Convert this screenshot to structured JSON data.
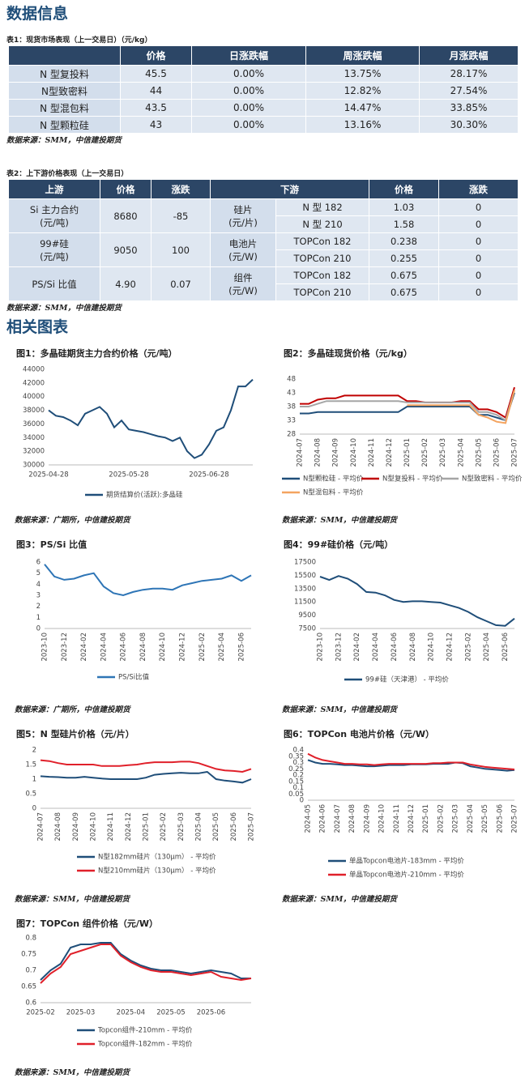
{
  "header": {
    "title": "数据信息"
  },
  "table1": {
    "caption": "表1：现货市场表现（上一交易日）（元/kg）",
    "columns": [
      "价格",
      "日涨跌幅",
      "周涨跌幅",
      "月涨跌幅"
    ],
    "rows": [
      [
        "N 型复投料",
        "45.5",
        "0.00%",
        "13.75%",
        "28.17%"
      ],
      [
        "N型致密料",
        "44",
        "0.00%",
        "12.82%",
        "27.54%"
      ],
      [
        "N 型混包料",
        "43.5",
        "0.00%",
        "14.47%",
        "33.85%"
      ],
      [
        "N 型颗粒硅",
        "43",
        "0.00%",
        "13.16%",
        "30.30%"
      ]
    ]
  },
  "source1": "数据来源：SMM，中信建投期货",
  "table2": {
    "caption": "表2：上下游价格表现（上一交易日）",
    "columns": [
      "上游",
      "价格",
      "涨跌",
      "下游",
      "价格",
      "涨跌"
    ],
    "upstream": [
      {
        "name": "Si 主力合约",
        "unit": "(元/吨)",
        "price": "8680",
        "change": "-85"
      },
      {
        "name": "99#硅",
        "unit": "(元/吨)",
        "price": "9050",
        "change": "100"
      },
      {
        "name": "PS/Si 比值",
        "price": "4.90",
        "change": "0.07"
      }
    ],
    "downstream": [
      {
        "name": "硅片",
        "unit": "(元/片)",
        "items": [
          {
            "spec": "N 型 182",
            "price": "1.03",
            "change": "0"
          },
          {
            "spec": "N 型 210",
            "price": "1.58",
            "change": "0"
          }
        ]
      },
      {
        "name": "电池片",
        "unit": "(元/W)",
        "items": [
          {
            "spec": "TOPCon 182",
            "price": "0.238",
            "change": "0"
          },
          {
            "spec": "TOPCon 210",
            "price": "0.255",
            "change": "0"
          }
        ]
      },
      {
        "name": "组件",
        "unit": "(元/W)",
        "items": [
          {
            "spec": "TOPCon 182",
            "price": "0.675",
            "change": "0"
          },
          {
            "spec": "TOPCon 210",
            "price": "0.675",
            "change": "0"
          }
        ]
      }
    ]
  },
  "source2": "数据来源：SMM，中信建投期货",
  "section_title": "相关图表",
  "chart_data": [
    {
      "type": "line",
      "title": "图1：多晶硅期货主力合约价格（元/吨）",
      "source": "数据来源：广期所，中信建投期货",
      "grid": false,
      "categories": [
        "2025-04-28",
        null,
        null,
        null,
        null,
        null,
        null,
        null,
        null,
        null,
        null,
        "2025-05-28",
        null,
        null,
        null,
        null,
        null,
        null,
        null,
        null,
        null,
        null,
        "2025-06-28",
        null,
        null,
        null,
        null,
        null,
        null
      ],
      "series": [
        {
          "name": "期货结算价(活跃):多晶硅",
          "color": "#1f4e79",
          "values": [
            38000,
            37200,
            37000,
            36500,
            35800,
            37500,
            38000,
            38500,
            37500,
            35500,
            36500,
            35200,
            35000,
            34800,
            34500,
            34200,
            34000,
            33500,
            34000,
            32000,
            31000,
            31500,
            33000,
            35000,
            35500,
            38000,
            41500,
            41500,
            42500
          ]
        }
      ],
      "ylim": [
        30000,
        44000
      ],
      "yticks": [
        30000,
        32000,
        34000,
        36000,
        38000,
        40000,
        42000,
        44000
      ]
    },
    {
      "type": "line",
      "title": "图2：多晶硅现货价格（元/kg）",
      "source": "数据来源：SMM，中信建投期货",
      "grid": false,
      "categories": [
        "2024-07",
        null,
        "2024-08",
        null,
        "2024-09",
        null,
        "2024-10",
        null,
        "2024-11",
        null,
        "2024-12",
        null,
        "2025-01",
        null,
        "2025-02",
        null,
        "2025-03",
        null,
        "2025-04",
        null,
        "2025-05",
        null,
        "2025-06",
        null,
        "2025-07"
      ],
      "series": [
        {
          "name": "N型颗粒硅 - 平均价",
          "color": "#1f4e79",
          "values": [
            35.5,
            35.5,
            36,
            36,
            36,
            36,
            36,
            36,
            36,
            36,
            36,
            36,
            38,
            38,
            38,
            38,
            38,
            38,
            38,
            38,
            35,
            35,
            34,
            33,
            43
          ]
        },
        {
          "name": "N型复投料 - 平均价",
          "color": "#c00000",
          "values": [
            39,
            39,
            40.5,
            41,
            41,
            42,
            42,
            42,
            42,
            42,
            42,
            42,
            40,
            40,
            39.5,
            39.5,
            39.5,
            39.5,
            40,
            40,
            37,
            37,
            36,
            34,
            45
          ]
        },
        {
          "name": "N型致密料 - 平均价",
          "color": "#a5a5a5",
          "values": [
            38,
            38,
            39,
            40,
            40,
            40,
            40,
            40,
            40,
            40,
            40,
            40,
            39.5,
            39.5,
            39.5,
            39.5,
            39.5,
            39.5,
            39.5,
            39.5,
            36,
            36,
            35,
            33,
            44
          ]
        },
        {
          "name": "N型混包料 - 平均价",
          "color": "#f4a460",
          "values": [
            null,
            null,
            null,
            null,
            null,
            null,
            null,
            null,
            null,
            null,
            null,
            null,
            38.5,
            38.5,
            38.5,
            38.5,
            38.5,
            38.5,
            38.5,
            38.5,
            35,
            34,
            32.5,
            32,
            44
          ]
        }
      ],
      "ylim": [
        28,
        48
      ],
      "yticks": [
        28,
        33,
        38,
        43,
        48
      ]
    },
    {
      "type": "line",
      "title": "图3：PS/Si 比值",
      "source": "数据来源：广期所，中信建投期货",
      "grid": false,
      "categories": [
        "2023-10",
        null,
        "2023-12",
        null,
        "2024-02",
        null,
        "2024-04",
        null,
        "2024-06",
        null,
        "2024-08",
        null,
        "2024-10",
        null,
        "2024-12",
        null,
        "2025-02",
        null,
        "2025-04",
        null,
        "2025-06",
        null
      ],
      "series": [
        {
          "name": "PS/Si比值",
          "color": "#2e75b6",
          "values": [
            5.8,
            4.7,
            4.4,
            4.5,
            4.8,
            5.0,
            3.8,
            3.2,
            3.0,
            3.3,
            3.5,
            3.6,
            3.6,
            3.5,
            3.9,
            4.1,
            4.3,
            4.4,
            4.5,
            4.8,
            4.3,
            4.8
          ]
        }
      ],
      "ylim": [
        0,
        6
      ],
      "yticks": [
        0,
        1,
        2,
        3,
        4,
        5,
        6
      ]
    },
    {
      "type": "line",
      "title": "图4：99#硅价格（元/吨）",
      "source": "数据来源：SMM，中信建投期货",
      "grid": false,
      "categories": [
        "2023-10",
        null,
        "2023-12",
        null,
        "2024-02",
        null,
        "2024-04",
        null,
        "2024-06",
        null,
        "2024-08",
        null,
        "2024-10",
        null,
        "2024-12",
        null,
        "2025-02",
        null,
        "2025-04",
        null,
        "2025-06",
        null
      ],
      "series": [
        {
          "name": "99#硅（天津港） - 平均价",
          "color": "#1f4e79",
          "values": [
            15300,
            14800,
            15400,
            15000,
            14200,
            13000,
            12900,
            12500,
            11800,
            11500,
            11600,
            11600,
            11500,
            11400,
            11000,
            10600,
            10000,
            9200,
            8600,
            8000,
            7900,
            9000
          ]
        }
      ],
      "ylim": [
        7500,
        17500
      ],
      "yticks": [
        7500,
        9500,
        11500,
        13500,
        15500,
        17500
      ]
    },
    {
      "type": "line",
      "title": "图5：N 型硅片价格（元/片）",
      "source": "数据来源：SMM，中信建投期货",
      "grid": false,
      "categories": [
        "2024-07",
        null,
        "2024-08",
        null,
        "2024-09",
        null,
        "2024-10",
        null,
        "2024-11",
        null,
        "2024-12",
        null,
        "2025-01",
        null,
        "2025-02",
        null,
        "2025-03",
        null,
        "2025-04",
        null,
        "2025-05",
        null,
        "2025-06",
        null,
        "2025-07"
      ],
      "series": [
        {
          "name": "N型182mm硅片（130μm） - 平均价",
          "color": "#1f4e79",
          "values": [
            1.1,
            1.08,
            1.07,
            1.05,
            1.05,
            1.08,
            1.05,
            1.02,
            1.0,
            1.0,
            1.0,
            1.0,
            1.05,
            1.15,
            1.18,
            1.2,
            1.22,
            1.2,
            1.2,
            1.25,
            1.0,
            0.95,
            0.92,
            0.88,
            1.0
          ]
        },
        {
          "name": "N型210mm硅片（130μm） - 平均价",
          "color": "#e0202a",
          "values": [
            1.65,
            1.62,
            1.55,
            1.5,
            1.5,
            1.5,
            1.5,
            1.45,
            1.45,
            1.45,
            1.48,
            1.5,
            1.55,
            1.58,
            1.58,
            1.58,
            1.6,
            1.6,
            1.55,
            1.45,
            1.35,
            1.3,
            1.28,
            1.25,
            1.35
          ]
        }
      ],
      "ylim": [
        0,
        2
      ],
      "yticks": [
        0,
        0.5,
        1,
        1.5,
        2
      ]
    },
    {
      "type": "line",
      "title": "图6：TOPCon 电池片价格（元/W）",
      "source": "数据来源：SMM，中信建投期货",
      "grid": false,
      "categories": [
        "2024-05",
        null,
        "2024-06",
        null,
        "2024-07",
        null,
        "2024-08",
        null,
        "2024-09",
        null,
        "2024-10",
        null,
        "2024-11",
        null,
        "2024-12",
        null,
        "2025-01",
        null,
        "2025-02",
        null,
        "2025-03",
        null,
        "2025-04",
        null,
        "2025-05",
        null,
        "2025-06",
        null,
        "2025-07"
      ],
      "series": [
        {
          "name": "单晶Topcon电池片-183mm - 平均价",
          "color": "#1f4e79",
          "values": [
            0.32,
            0.3,
            0.29,
            0.29,
            0.285,
            0.28,
            0.28,
            0.275,
            0.27,
            0.27,
            0.275,
            0.28,
            0.28,
            0.28,
            0.285,
            0.285,
            0.285,
            0.29,
            0.29,
            0.29,
            0.3,
            0.295,
            0.27,
            0.26,
            0.25,
            0.245,
            0.24,
            0.235,
            0.24
          ]
        },
        {
          "name": "单晶Topcon电池片-210mm - 平均价",
          "color": "#e0202a",
          "values": [
            0.37,
            0.34,
            0.32,
            0.31,
            0.3,
            0.29,
            0.29,
            0.285,
            0.285,
            0.28,
            0.285,
            0.29,
            0.29,
            0.29,
            0.29,
            0.29,
            0.29,
            0.295,
            0.295,
            0.3,
            0.3,
            0.3,
            0.285,
            0.275,
            0.265,
            0.26,
            0.255,
            0.25,
            0.245
          ]
        }
      ],
      "ylim": [
        0,
        0.4
      ],
      "yticks": [
        0,
        0.05,
        0.1,
        0.15,
        0.2,
        0.25,
        0.3,
        0.35,
        0.4
      ]
    },
    {
      "type": "line",
      "title": "图7：TOPCon 组件价格（元/W）",
      "source": "数据来源：SMM，中信建投期货",
      "grid": false,
      "categories": [
        "2025-02",
        null,
        null,
        null,
        "2025-03",
        null,
        null,
        null,
        null,
        "2025-04",
        null,
        null,
        null,
        "2025-05",
        null,
        null,
        null,
        "2025-06",
        null,
        null,
        null,
        null
      ],
      "series": [
        {
          "name": "Topcon组件-210mm - 平均价",
          "color": "#1f4e79",
          "values": [
            0.67,
            0.7,
            0.72,
            0.77,
            0.78,
            0.78,
            0.785,
            0.785,
            0.75,
            0.73,
            0.715,
            0.705,
            0.7,
            0.7,
            0.695,
            0.69,
            0.695,
            0.7,
            0.695,
            0.69,
            0.675,
            0.675
          ]
        },
        {
          "name": "Topcon组件-182mm - 平均价",
          "color": "#e0202a",
          "values": [
            0.66,
            0.69,
            0.71,
            0.75,
            0.76,
            0.77,
            0.78,
            0.78,
            0.745,
            0.725,
            0.71,
            0.7,
            0.695,
            0.695,
            0.69,
            0.685,
            0.69,
            0.695,
            0.68,
            0.675,
            0.67,
            0.675
          ]
        }
      ],
      "ylim": [
        0.6,
        0.8
      ],
      "yticks": [
        0.6,
        0.65,
        0.7,
        0.75,
        0.8
      ]
    }
  ]
}
